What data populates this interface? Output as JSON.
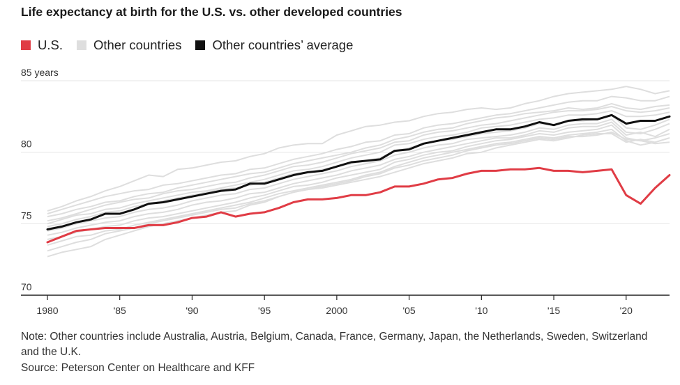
{
  "chart_data": {
    "type": "line",
    "title": "Life expectancy at birth for the U.S. vs. other developed countries",
    "xlim": [
      1980,
      2023
    ],
    "ylim": [
      70,
      85
    ],
    "y_ticks": [
      70,
      75,
      80,
      85
    ],
    "y_tick_labels": [
      "70",
      "75",
      "80",
      "85 years"
    ],
    "x_ticks": [
      1980,
      1985,
      1990,
      1995,
      2000,
      2005,
      2010,
      2015,
      2020
    ],
    "x_tick_labels": [
      "1980",
      "'85",
      "'90",
      "'95",
      "2000",
      "'05",
      "'10",
      "'15",
      "'20"
    ],
    "grid": "horizontal",
    "legend_position": "top-left",
    "legend": [
      {
        "label": "U.S.",
        "color": "#e03c45"
      },
      {
        "label": "Other countries",
        "color": "#dedede"
      },
      {
        "label": "Other countries’ average",
        "color": "#111111"
      }
    ],
    "x": [
      1980,
      1981,
      1982,
      1983,
      1984,
      1985,
      1986,
      1987,
      1988,
      1989,
      1990,
      1991,
      1992,
      1993,
      1994,
      1995,
      1996,
      1997,
      1998,
      1999,
      2000,
      2001,
      2002,
      2003,
      2004,
      2005,
      2006,
      2007,
      2008,
      2009,
      2010,
      2011,
      2012,
      2013,
      2014,
      2015,
      2016,
      2017,
      2018,
      2019,
      2020,
      2021,
      2022,
      2023
    ],
    "series": [
      {
        "name": "U.S.",
        "role": "us",
        "color": "#e03c45",
        "values": [
          73.7,
          74.1,
          74.5,
          74.6,
          74.7,
          74.7,
          74.7,
          74.9,
          74.9,
          75.1,
          75.4,
          75.5,
          75.8,
          75.5,
          75.7,
          75.8,
          76.1,
          76.5,
          76.7,
          76.7,
          76.8,
          77.0,
          77.0,
          77.2,
          77.6,
          77.6,
          77.8,
          78.1,
          78.2,
          78.5,
          78.7,
          78.7,
          78.8,
          78.8,
          78.9,
          78.7,
          78.7,
          78.6,
          78.7,
          78.8,
          77.0,
          76.4,
          77.5,
          78.4
        ]
      },
      {
        "name": "Other countries’ average",
        "role": "avg",
        "color": "#111111",
        "values": [
          74.6,
          74.8,
          75.1,
          75.3,
          75.7,
          75.7,
          76.0,
          76.4,
          76.5,
          76.7,
          76.9,
          77.1,
          77.3,
          77.4,
          77.8,
          77.8,
          78.1,
          78.4,
          78.6,
          78.7,
          79.0,
          79.3,
          79.4,
          79.5,
          80.1,
          80.2,
          80.6,
          80.8,
          81.0,
          81.2,
          81.4,
          81.6,
          81.6,
          81.8,
          82.1,
          81.9,
          82.2,
          82.3,
          82.3,
          82.6,
          82.0,
          82.2,
          82.2,
          82.5
        ]
      },
      {
        "role": "other",
        "color": "#dedede",
        "values": [
          75.9,
          76.2,
          76.6,
          76.9,
          77.3,
          77.6,
          78.0,
          78.4,
          78.3,
          78.8,
          78.9,
          79.1,
          79.3,
          79.4,
          79.7,
          79.9,
          80.3,
          80.5,
          80.6,
          80.6,
          81.2,
          81.5,
          81.8,
          81.9,
          82.1,
          82.2,
          82.5,
          82.7,
          82.8,
          83.0,
          83.1,
          83.0,
          83.1,
          83.4,
          83.6,
          83.9,
          84.1,
          84.2,
          84.3,
          84.4,
          84.6,
          84.4,
          84.1,
          84.3
        ]
      },
      {
        "role": "other",
        "color": "#dedede",
        "values": [
          75.7,
          76.0,
          76.3,
          76.6,
          76.9,
          77.1,
          77.3,
          77.4,
          77.7,
          77.8,
          78.0,
          78.2,
          78.4,
          78.5,
          78.8,
          78.9,
          79.2,
          79.5,
          79.7,
          79.9,
          80.2,
          80.4,
          80.7,
          80.8,
          81.2,
          81.3,
          81.7,
          81.9,
          82.0,
          82.2,
          82.4,
          82.6,
          82.7,
          82.9,
          83.1,
          83.3,
          83.5,
          83.6,
          83.6,
          83.9,
          83.8,
          83.6,
          83.6,
          83.9
        ]
      },
      {
        "role": "other",
        "color": "#dedede",
        "values": [
          75.5,
          75.7,
          76.0,
          76.2,
          76.5,
          76.6,
          76.9,
          77.1,
          77.2,
          77.5,
          77.7,
          77.9,
          78.1,
          78.3,
          78.5,
          78.6,
          78.9,
          79.2,
          79.4,
          79.6,
          79.8,
          80.0,
          80.3,
          80.5,
          80.9,
          81.1,
          81.4,
          81.6,
          81.7,
          82.0,
          82.2,
          82.4,
          82.5,
          82.7,
          82.8,
          82.9,
          83.1,
          83.0,
          83.1,
          83.4,
          83.1,
          83.0,
          83.2,
          83.3
        ]
      },
      {
        "role": "other",
        "color": "#dedede",
        "values": [
          75.2,
          75.4,
          75.7,
          76.0,
          76.3,
          76.5,
          76.7,
          76.8,
          77.1,
          77.3,
          77.4,
          77.6,
          77.8,
          77.9,
          78.2,
          78.4,
          78.7,
          79.0,
          79.1,
          79.3,
          79.6,
          79.9,
          80.1,
          80.3,
          80.7,
          80.8,
          81.2,
          81.4,
          81.5,
          81.7,
          81.9,
          82.0,
          82.2,
          82.4,
          82.6,
          82.8,
          82.9,
          82.9,
          83.0,
          83.2,
          82.9,
          82.8,
          82.9,
          83.1
        ]
      },
      {
        "role": "other",
        "color": "#dedede",
        "values": [
          75.0,
          75.3,
          75.6,
          75.7,
          76.0,
          76.1,
          76.4,
          76.6,
          76.8,
          77.0,
          77.2,
          77.3,
          77.5,
          77.7,
          77.9,
          78.1,
          78.4,
          78.7,
          78.8,
          79.0,
          79.3,
          79.6,
          79.8,
          80.0,
          80.5,
          80.6,
          80.9,
          81.1,
          81.2,
          81.4,
          81.7,
          81.8,
          81.9,
          82.1,
          82.3,
          82.4,
          82.6,
          82.6,
          82.7,
          82.9,
          82.5,
          82.5,
          82.6,
          82.8
        ]
      },
      {
        "role": "other",
        "color": "#dedede",
        "values": [
          74.8,
          75.0,
          75.3,
          75.5,
          75.8,
          75.9,
          76.2,
          76.4,
          76.6,
          76.8,
          77.0,
          77.2,
          77.4,
          77.5,
          77.7,
          77.9,
          78.2,
          78.5,
          78.6,
          78.8,
          79.0,
          79.2,
          79.4,
          79.6,
          80.1,
          80.3,
          80.6,
          80.8,
          80.9,
          81.1,
          81.3,
          81.4,
          81.5,
          81.7,
          82.0,
          81.9,
          82.2,
          82.2,
          82.3,
          82.6,
          81.7,
          81.6,
          81.9,
          82.3
        ]
      },
      {
        "role": "other",
        "color": "#dedede",
        "values": [
          74.5,
          74.7,
          75.0,
          75.2,
          75.4,
          75.5,
          75.8,
          76.0,
          76.1,
          76.3,
          76.6,
          76.8,
          77.0,
          77.1,
          77.4,
          77.5,
          77.8,
          78.1,
          78.3,
          78.5,
          78.7,
          79.0,
          79.2,
          79.4,
          79.8,
          80.0,
          80.3,
          80.5,
          80.6,
          80.9,
          81.0,
          81.1,
          81.2,
          81.4,
          81.7,
          81.6,
          81.9,
          82.0,
          82.0,
          82.3,
          81.4,
          81.3,
          81.6,
          82.0
        ]
      },
      {
        "role": "other",
        "color": "#dedede",
        "values": [
          74.2,
          74.4,
          74.7,
          74.9,
          75.1,
          75.2,
          75.5,
          75.7,
          75.8,
          76.0,
          76.3,
          76.5,
          76.6,
          76.8,
          77.1,
          77.2,
          77.5,
          77.8,
          78.0,
          78.2,
          78.4,
          78.7,
          78.9,
          79.1,
          79.5,
          79.7,
          80.0,
          80.2,
          80.4,
          80.6,
          80.8,
          81.0,
          81.0,
          81.2,
          81.5,
          81.4,
          81.7,
          81.8,
          81.8,
          82.1,
          81.2,
          81.4,
          81.1,
          81.6
        ]
      },
      {
        "role": "other",
        "color": "#dedede",
        "values": [
          73.9,
          74.1,
          74.4,
          74.6,
          74.8,
          74.9,
          75.2,
          75.4,
          75.5,
          75.7,
          75.9,
          76.1,
          76.3,
          76.5,
          76.8,
          77.0,
          77.3,
          77.6,
          77.7,
          77.9,
          78.2,
          78.4,
          78.6,
          78.8,
          79.3,
          79.5,
          79.8,
          80.0,
          80.1,
          80.4,
          80.6,
          80.8,
          80.9,
          81.1,
          81.3,
          81.2,
          81.4,
          81.5,
          81.6,
          81.9,
          81.0,
          80.8,
          81.0,
          81.3
        ]
      },
      {
        "role": "other",
        "color": "#dedede",
        "values": [
          73.5,
          73.8,
          74.1,
          74.2,
          74.5,
          74.6,
          74.9,
          75.1,
          75.3,
          75.5,
          75.7,
          75.9,
          76.1,
          76.3,
          76.5,
          76.8,
          77.1,
          77.3,
          77.5,
          77.7,
          77.9,
          78.1,
          78.4,
          78.6,
          79.0,
          79.3,
          79.6,
          79.8,
          80.0,
          80.2,
          80.4,
          80.6,
          80.7,
          80.9,
          81.1,
          81.0,
          81.2,
          81.3,
          81.4,
          81.6,
          80.8,
          80.5,
          80.7,
          81.0
        ]
      },
      {
        "role": "other",
        "color": "#dedede",
        "values": [
          73.1,
          73.4,
          73.7,
          73.9,
          74.3,
          74.5,
          74.7,
          75.0,
          75.2,
          75.4,
          75.6,
          75.8,
          76.0,
          76.1,
          76.4,
          76.6,
          76.9,
          77.2,
          77.4,
          77.6,
          77.8,
          78.0,
          78.3,
          78.5,
          78.9,
          79.1,
          79.4,
          79.6,
          79.8,
          80.1,
          80.3,
          80.5,
          80.6,
          80.8,
          81.0,
          80.9,
          81.1,
          81.1,
          81.2,
          81.4,
          80.9,
          80.8,
          80.6,
          80.7
        ]
      },
      {
        "role": "other",
        "color": "#dedede",
        "values": [
          72.7,
          73.0,
          73.2,
          73.4,
          73.9,
          74.2,
          74.5,
          74.8,
          75.0,
          75.2,
          75.4,
          75.6,
          75.8,
          75.9,
          76.3,
          76.5,
          76.9,
          77.2,
          77.4,
          77.5,
          77.7,
          77.9,
          78.1,
          78.3,
          78.6,
          78.9,
          79.2,
          79.4,
          79.6,
          79.9,
          80.0,
          80.3,
          80.5,
          80.7,
          80.9,
          80.8,
          81.0,
          81.2,
          81.3,
          81.3,
          80.7,
          80.9,
          80.7,
          81.0
        ]
      }
    ]
  },
  "note": "Note: Other countries include Australia, Austria, Belgium, Canada, France, Germany, Japan, the Netherlands, Sweden, Switzerland and the U.K.",
  "source": "Source: Peterson Center on Healthcare and KFF"
}
